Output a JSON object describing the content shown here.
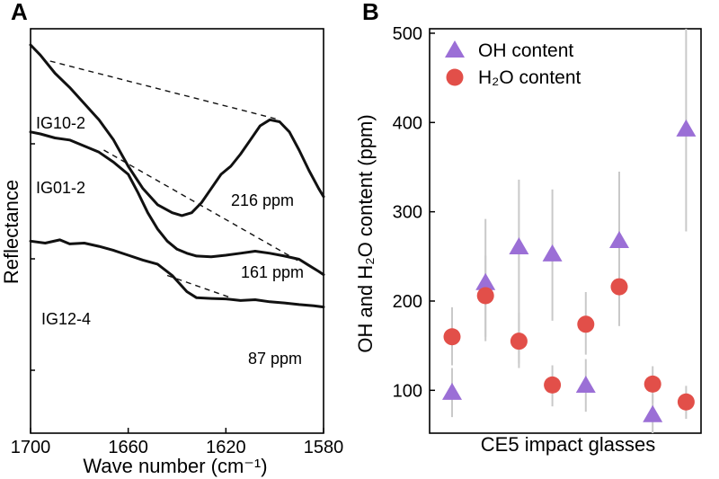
{
  "chart_data": [
    {
      "panel": "A",
      "type": "line",
      "xlabel": "Wave number (cm⁻¹)",
      "ylabel": "Reflectance",
      "xlim": [
        1700,
        1580
      ],
      "x_ticks": [
        1700,
        1660,
        1620,
        1580
      ],
      "x_tick_labels": [
        "1700",
        "1660",
        "1620",
        "1580"
      ],
      "series": [
        {
          "name": "IG10-2",
          "annotation": "216 ppm",
          "x": [
            1700,
            1696,
            1690,
            1684,
            1678,
            1672,
            1666,
            1660,
            1654,
            1648,
            1642,
            1638,
            1634,
            1630,
            1626,
            1622,
            1618,
            1614,
            1610,
            1606,
            1602,
            1598,
            1594,
            1590,
            1586,
            1582,
            1580
          ],
          "y": [
            0.96,
            0.935,
            0.89,
            0.855,
            0.815,
            0.775,
            0.725,
            0.66,
            0.605,
            0.565,
            0.545,
            0.538,
            0.545,
            0.57,
            0.605,
            0.64,
            0.66,
            0.69,
            0.725,
            0.76,
            0.775,
            0.77,
            0.745,
            0.7,
            0.65,
            0.605,
            0.585
          ]
        },
        {
          "name": "IG01-2",
          "annotation": "161 ppm",
          "x": [
            1700,
            1696,
            1690,
            1684,
            1678,
            1672,
            1666,
            1660,
            1656,
            1652,
            1648,
            1644,
            1640,
            1636,
            1632,
            1626,
            1620,
            1614,
            1608,
            1602,
            1596,
            1590,
            1586,
            1582,
            1580
          ],
          "y": [
            0.745,
            0.74,
            0.73,
            0.725,
            0.71,
            0.695,
            0.67,
            0.64,
            0.595,
            0.545,
            0.505,
            0.475,
            0.455,
            0.445,
            0.438,
            0.436,
            0.44,
            0.445,
            0.45,
            0.445,
            0.438,
            0.43,
            0.415,
            0.4,
            0.392
          ]
        },
        {
          "name": "IG12-4",
          "annotation": "87 ppm",
          "x": [
            1700,
            1694,
            1688,
            1684,
            1678,
            1672,
            1666,
            1660,
            1654,
            1648,
            1642,
            1636,
            1632,
            1626,
            1620,
            1614,
            1608,
            1602,
            1596,
            1590,
            1584,
            1580
          ],
          "y": [
            0.475,
            0.47,
            0.478,
            0.468,
            0.47,
            0.462,
            0.452,
            0.44,
            0.428,
            0.418,
            0.39,
            0.35,
            0.335,
            0.333,
            0.332,
            0.328,
            0.33,
            0.325,
            0.322,
            0.318,
            0.315,
            0.312
          ]
        }
      ],
      "dashed_baselines": [
        {
          "series": "IG10-2",
          "x": [
            1692,
            1598
          ],
          "y": [
            0.92,
            0.775
          ]
        },
        {
          "series": "IG01-2",
          "x": [
            1670,
            1590
          ],
          "y": [
            0.7,
            0.425
          ]
        },
        {
          "series": "IG12-4",
          "x": [
            1644,
            1618
          ],
          "y": [
            0.39,
            0.335
          ]
        }
      ],
      "grid": false
    },
    {
      "panel": "B",
      "type": "scatter",
      "xlabel": "CE5 impact glasses",
      "ylabel": "OH and H₂O content (ppm)",
      "ylim": [
        52,
        505
      ],
      "y_ticks": [
        100,
        200,
        300,
        400,
        500
      ],
      "x": [
        1,
        2,
        3,
        4,
        5,
        6,
        7,
        8
      ],
      "series": [
        {
          "name": "OH content",
          "marker": "triangle",
          "color": "#9b6fd6",
          "values": [
            97,
            220,
            260,
            252,
            105,
            267,
            72,
            392
          ],
          "err_low": [
            70,
            155,
            130,
            178,
            76,
            195,
            52,
            278
          ],
          "err_high": [
            125,
            292,
            336,
            325,
            135,
            345,
            95,
            505
          ]
        },
        {
          "name": "H₂O content",
          "marker": "circle",
          "color": "#e24f49",
          "values": [
            160,
            206,
            155,
            106,
            174,
            216,
            107,
            87
          ],
          "err_low": [
            128,
            160,
            125,
            82,
            140,
            172,
            86,
            68
          ],
          "err_high": [
            193,
            251,
            187,
            128,
            210,
            260,
            127,
            105
          ]
        }
      ],
      "legend_position": "top-left",
      "grid": false
    }
  ]
}
